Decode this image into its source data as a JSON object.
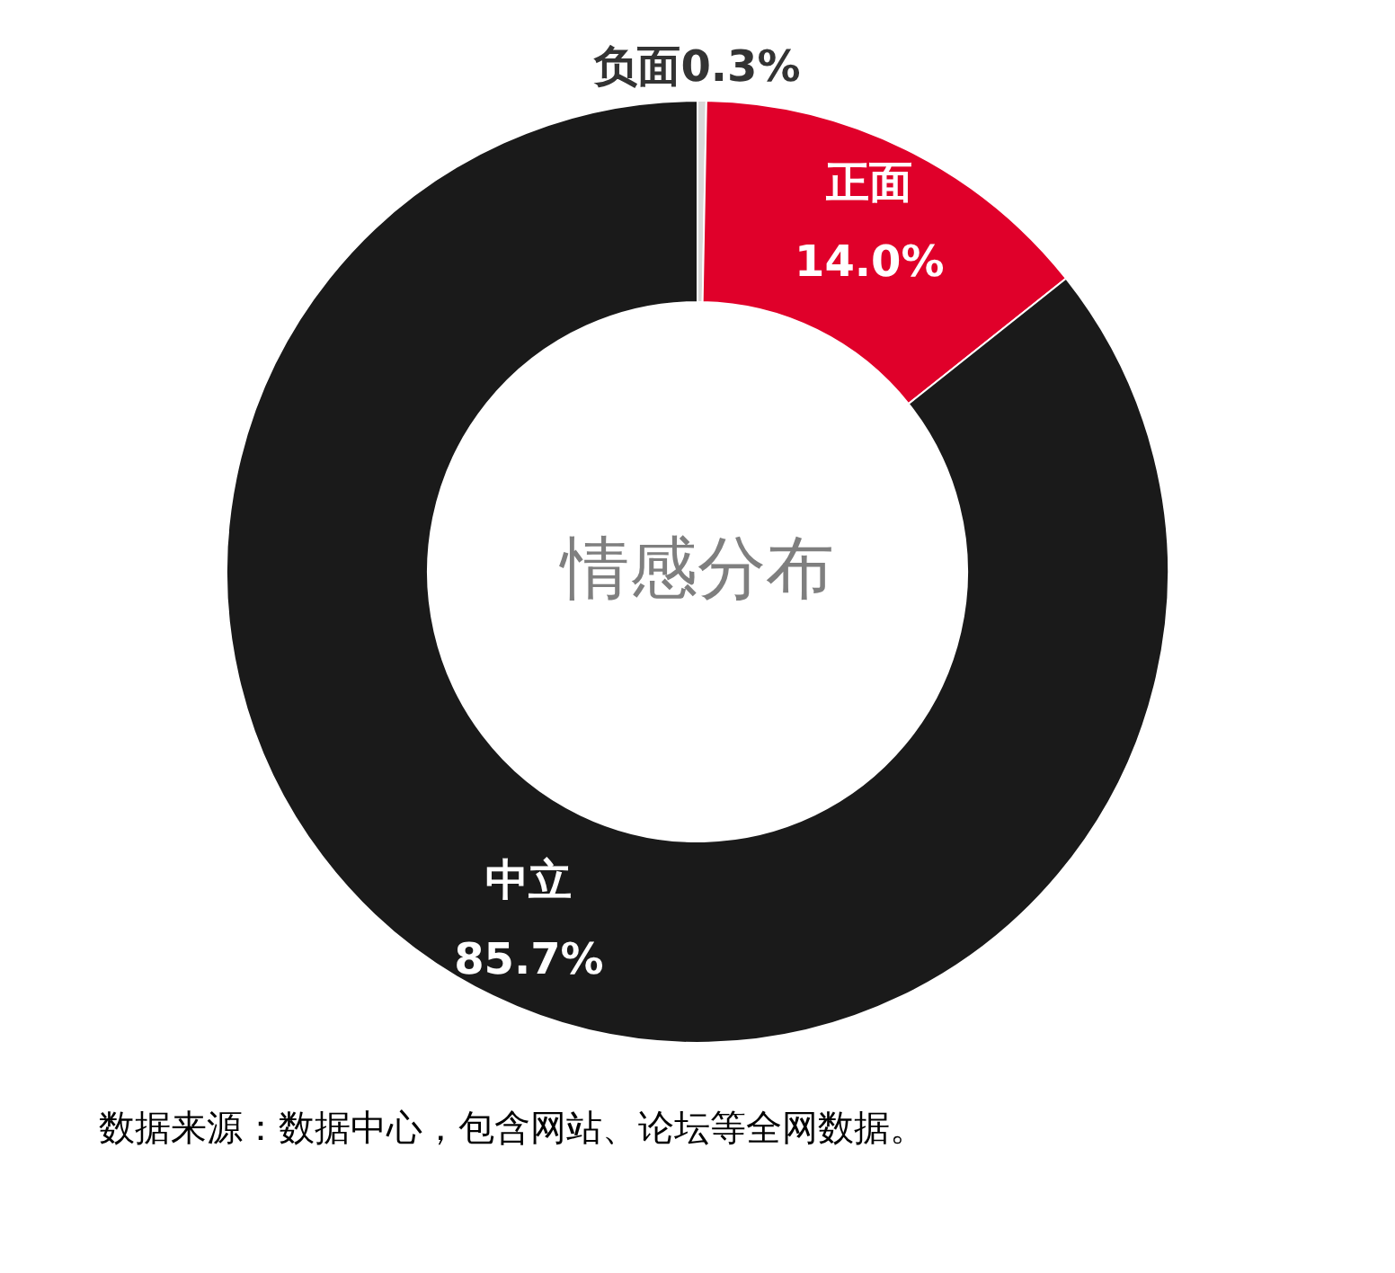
{
  "chart_data": {
    "type": "donut",
    "title": "情感分布",
    "categories": [
      "负面",
      "正面",
      "中立"
    ],
    "values": [
      0.3,
      14.0,
      85.7
    ],
    "value_labels": [
      "0.3%",
      "14.0%",
      "85.7%"
    ],
    "colors": [
      "#d9d9d9",
      "#e0002a",
      "#1a1a1a"
    ],
    "legend": false,
    "annotations": [
      "数据来源：数据中心，包含网站、论坛等全网数据。"
    ]
  }
}
